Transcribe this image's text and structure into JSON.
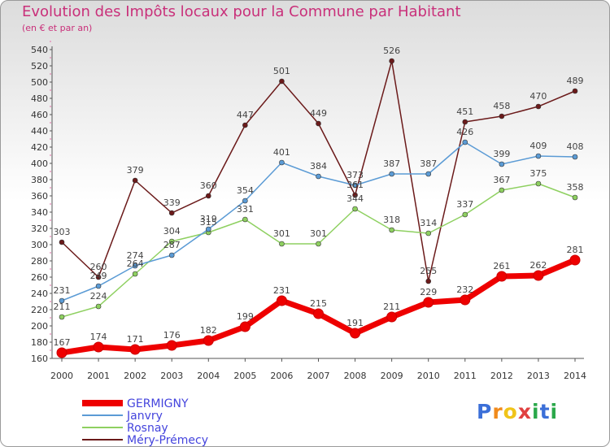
{
  "title": "Evolution des Impôts locaux pour la Commune par Habitant",
  "subtitle": "(en € et par an)",
  "logo": {
    "text": "Proxiti",
    "letters": [
      "P",
      "r",
      "o",
      "x",
      "i",
      "t",
      "i"
    ],
    "colors": [
      "#3b6fd8",
      "#f08a1c",
      "#f0c419",
      "#e04040",
      "#2aa84a",
      "#3b6fd8",
      "#2aa84a"
    ]
  },
  "chart_data": {
    "type": "line",
    "title": "Evolution des Impôts locaux pour la Commune par Habitant",
    "subtitle": "(en € et par an)",
    "xlabel": "",
    "ylabel": "",
    "ylim": [
      160,
      540
    ],
    "ytick_step": 20,
    "grid": false,
    "legend_position": "bottom-left",
    "categories": [
      "2000",
      "2001",
      "2002",
      "2003",
      "2004",
      "2005",
      "2006",
      "2007",
      "2008",
      "2009",
      "2010",
      "2011",
      "2012",
      "2013",
      "2014"
    ],
    "series": [
      {
        "name": "GERMIGNY",
        "color": "#ee0000",
        "values": [
          167,
          174,
          171,
          176,
          182,
          199,
          231,
          215,
          191,
          211,
          229,
          232,
          261,
          262,
          281
        ]
      },
      {
        "name": "Janvry",
        "color": "#5b9bd5",
        "values": [
          231,
          249,
          274,
          287,
          319,
          354,
          401,
          384,
          373,
          387,
          387,
          426,
          399,
          409,
          408
        ]
      },
      {
        "name": "Rosnay",
        "color": "#8ed060",
        "values": [
          211,
          224,
          264,
          304,
          315,
          331,
          301,
          301,
          344,
          318,
          314,
          337,
          367,
          375,
          358
        ]
      },
      {
        "name": "Méry-Prémecy",
        "color": "#6b1a1a",
        "values": [
          303,
          260,
          379,
          339,
          360,
          447,
          501,
          449,
          361,
          526,
          255,
          451,
          458,
          470,
          489
        ]
      }
    ],
    "label_series_index": [
      0,
      1,
      2,
      3
    ]
  }
}
